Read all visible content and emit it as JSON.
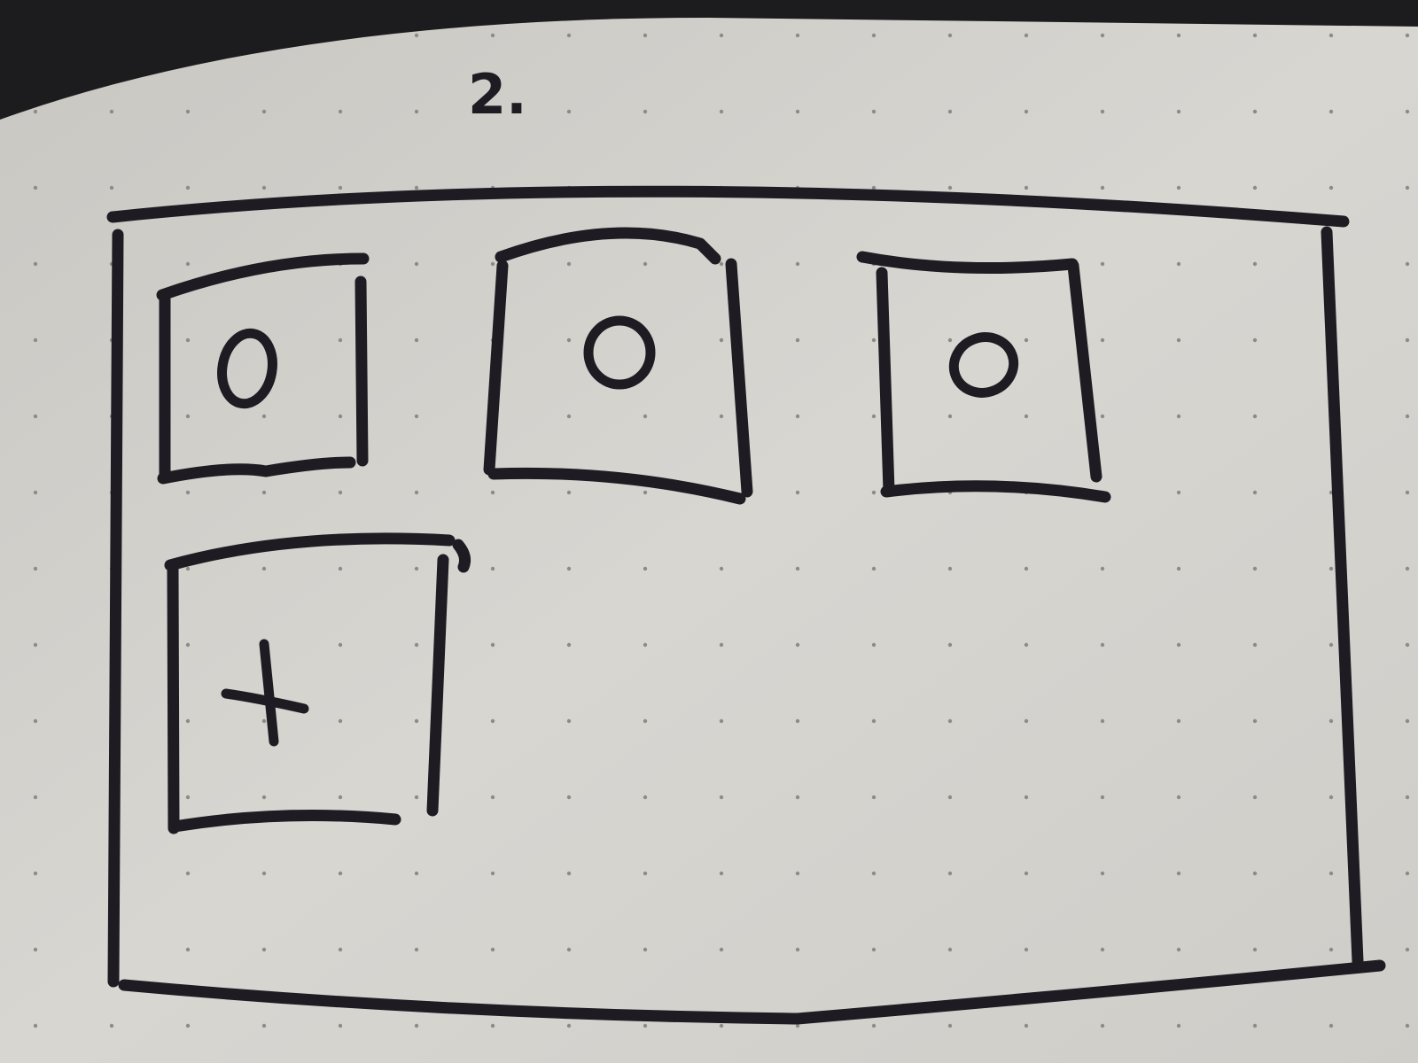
{
  "sketch": {
    "page_label": "2.",
    "screen": {
      "tiles": [
        {
          "icon": "circle-icon"
        },
        {
          "icon": "circle-icon"
        },
        {
          "icon": "circle-icon"
        }
      ],
      "add_tile": {
        "icon": "plus-icon"
      }
    }
  },
  "colors": {
    "paper": "#d6d4cf",
    "ink": "#1e1c22",
    "background": "#1c1b1d"
  }
}
